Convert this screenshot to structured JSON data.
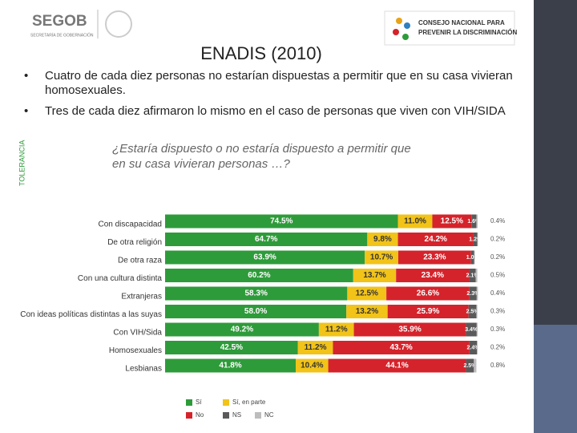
{
  "header": {
    "segob": "SEGOB",
    "segob_sub": "SECRETARÍA DE GOBERNACIÓN",
    "conapred_1": "CONSEJO NACIONAL PARA",
    "conapred_2": "PREVENIR LA DISCRIMINACIÓN",
    "title": "ENADIS (2010)"
  },
  "bullets": [
    "Cuatro de cada diez personas no estarían dispuestas a permitir que en su casa vivieran homosexuales.",
    "Tres de cada diez afirmaron lo mismo en el caso de personas que viven con VIH/SIDA"
  ],
  "chart_data": {
    "type": "stacked-bar",
    "side_label": "TOLERANCIA",
    "title": "¿Estaría dispuesto o no estaría dispuesto a permitir que en su casa vivieran personas …?",
    "categories": [
      "Con discapacidad",
      "De otra religión",
      "De otra raza",
      "Con una cultura distinta",
      "Extranjeras",
      "Con ideas políticas distintas a las suyas",
      "Con VIH/Sida",
      "Homosexuales",
      "Lesbianas"
    ],
    "series": [
      {
        "name": "Sí",
        "color": "#2e9b3a",
        "values": [
          74.5,
          64.7,
          63.9,
          60.2,
          58.3,
          58.0,
          49.2,
          42.5,
          41.8
        ],
        "value_labels": [
          "74.5%",
          "64.7%",
          "63.9%",
          "60.2%",
          "58.3%",
          "58.0%",
          "49.2%",
          "42.5%",
          "41.8%"
        ]
      },
      {
        "name": "Sí, en parte",
        "color": "#f2c318",
        "values": [
          11.0,
          9.8,
          10.7,
          13.7,
          12.5,
          13.2,
          11.2,
          11.2,
          10.4
        ],
        "value_labels": [
          "11.0%",
          "9.8%",
          "10.7%",
          "13.7%",
          "12.5%",
          "13.2%",
          "11.2%",
          "11.2%",
          "10.4%"
        ]
      },
      {
        "name": "No",
        "color": "#d5232b",
        "values": [
          12.5,
          24.2,
          23.3,
          23.4,
          26.6,
          25.9,
          35.9,
          43.7,
          44.1
        ],
        "value_labels": [
          "12.5%",
          "24.2%",
          "23.3%",
          "23.4%",
          "26.6%",
          "25.9%",
          "35.9%",
          "43.7%",
          "44.1%"
        ]
      },
      {
        "name": "NS",
        "color": "#5a5a5a",
        "values": [
          1.6,
          1.2,
          1.0,
          2.1,
          2.3,
          2.5,
          3.4,
          2.4,
          2.5
        ],
        "value_labels": [
          "1.6%",
          "1.2%",
          "1.0%",
          "2.1%",
          "2.3%",
          "2.5%",
          "3.4%",
          "2.4%",
          "2.5%"
        ]
      },
      {
        "name": "NC",
        "color": "#bdbdbd",
        "values": [
          0.4,
          0.2,
          0.2,
          0.5,
          0.4,
          0.3,
          0.3,
          0.2,
          0.8
        ],
        "value_labels": [
          "0.4%",
          "0.2%",
          "0.2%",
          "0.5%",
          "0.4%",
          "0.3%",
          "0.3%",
          "0.2%",
          "0.8%"
        ]
      }
    ]
  }
}
